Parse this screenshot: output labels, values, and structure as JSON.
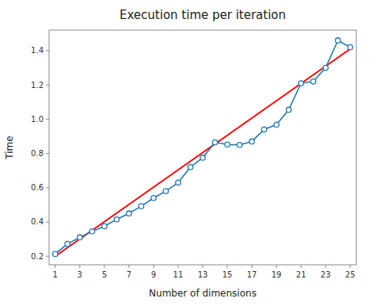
{
  "chart_data": {
    "type": "line",
    "title": "Execution time per iteration",
    "x_label": "Number of dimensions",
    "y_label": "Time",
    "xlim": [
      0.5,
      25.5
    ],
    "xticks": [
      1,
      3,
      5,
      7,
      9,
      11,
      13,
      15,
      17,
      19,
      21,
      23,
      25
    ],
    "ylim": [
      0.15,
      1.52
    ],
    "yticks": [
      0.2,
      0.4,
      0.6,
      0.8,
      {
        "value": 1.0,
        "label": "1.0"
      },
      1.2,
      1.4
    ],
    "grid": false,
    "series": [
      {
        "color": "red",
        "x": [
          1,
          25
        ],
        "values": [
          0.2,
          1.41
        ]
      },
      {
        "color": "#1f77b4",
        "marker": "circle",
        "x": [
          1,
          2,
          3,
          4,
          5,
          6,
          7,
          8,
          9,
          10,
          11,
          12,
          13,
          14,
          15,
          16,
          17,
          18,
          19,
          20,
          21,
          22,
          23,
          24,
          25
        ],
        "values": [
          0.213,
          0.272,
          0.31,
          0.345,
          0.375,
          0.415,
          0.45,
          0.492,
          0.54,
          0.58,
          0.63,
          0.72,
          0.775,
          0.865,
          0.852,
          0.85,
          0.87,
          0.94,
          0.968,
          1.055,
          1.21,
          1.22,
          1.3,
          1.46,
          1.42
        ]
      }
    ]
  }
}
